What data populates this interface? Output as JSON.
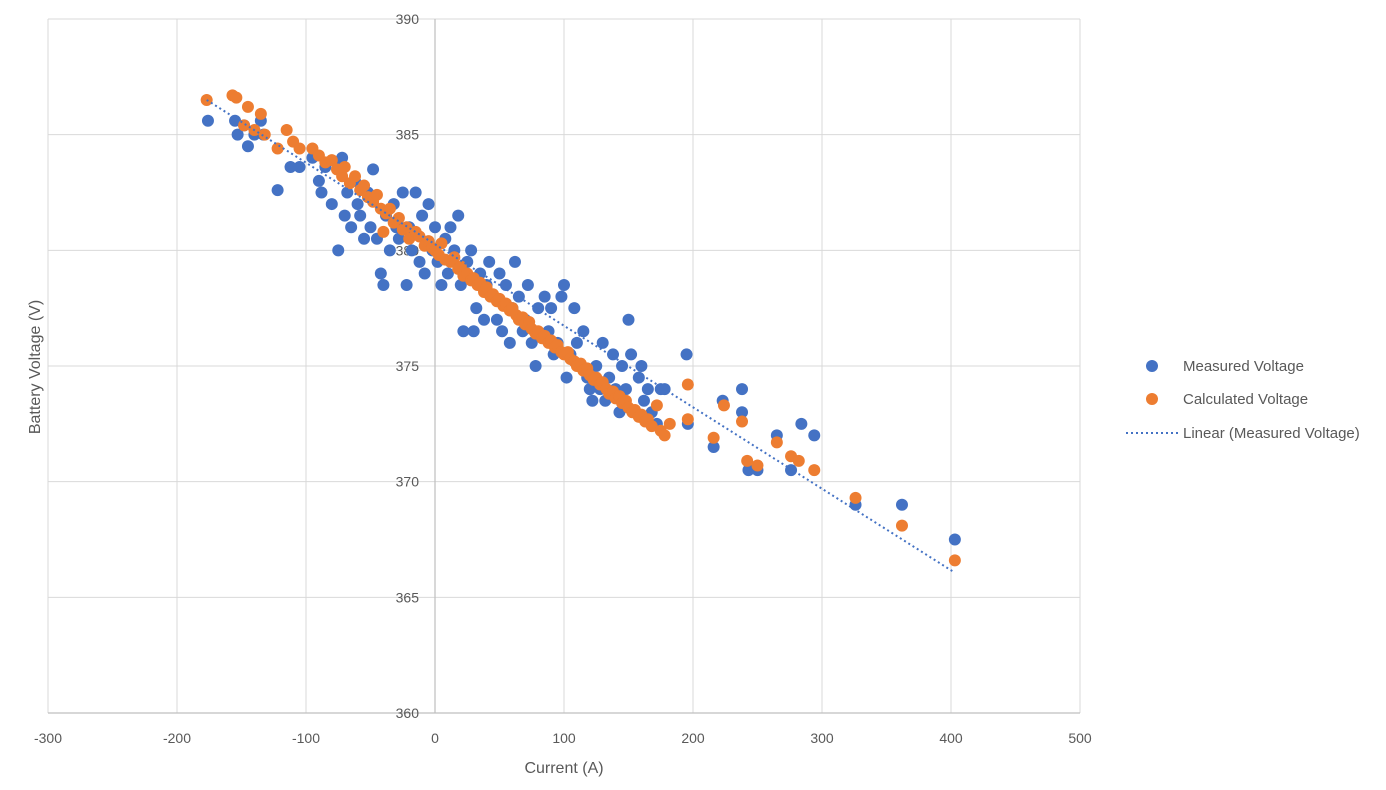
{
  "colors": {
    "measured": "#4472C4",
    "calculated": "#ED7D31",
    "trend": "#4472C4",
    "grid": "#D9D9D9",
    "text": "#595959"
  },
  "chart_data": {
    "type": "scatter",
    "title": "",
    "xlabel": "Current (A)",
    "ylabel": "Battery Voltage (V)",
    "xlim": [
      -300,
      500
    ],
    "ylim": [
      360,
      390
    ],
    "xticks": [
      -300,
      -200,
      -100,
      0,
      100,
      200,
      300,
      400,
      500
    ],
    "yticks": [
      360,
      365,
      370,
      375,
      380,
      385,
      390
    ],
    "xtick_labels": [
      "-300",
      "-200",
      "-100",
      "0",
      "100",
      "200",
      "300",
      "400",
      "500"
    ],
    "ytick_labels": [
      "360",
      "365",
      "370",
      "375",
      "380",
      "385",
      "390"
    ],
    "grid": true,
    "legend_position": "right",
    "legend": [
      "Measured Voltage",
      "Calculated Voltage",
      "Linear (Measured Voltage)"
    ],
    "trendline": {
      "name": "Linear (Measured Voltage)",
      "style": "dotted",
      "x": [
        -177,
        402
      ],
      "y": [
        386.5,
        366.1
      ]
    },
    "series": [
      {
        "name": "Measured Voltage",
        "color": "#4472C4",
        "points": [
          [
            -176,
            385.6
          ],
          [
            -155,
            385.6
          ],
          [
            -153,
            385.0
          ],
          [
            -148,
            385.4
          ],
          [
            -145,
            384.5
          ],
          [
            -140,
            385.0
          ],
          [
            -135,
            385.6
          ],
          [
            -133,
            385.0
          ],
          [
            -122,
            382.6
          ],
          [
            -112,
            383.6
          ],
          [
            -105,
            383.6
          ],
          [
            -95,
            384.0
          ],
          [
            -90,
            383.0
          ],
          [
            -88,
            382.5
          ],
          [
            -85,
            383.6
          ],
          [
            -80,
            382.0
          ],
          [
            -75,
            383.6
          ],
          [
            -72,
            384.0
          ],
          [
            -75,
            380.0
          ],
          [
            -70,
            381.5
          ],
          [
            -68,
            382.5
          ],
          [
            -65,
            381.0
          ],
          [
            -62,
            383.0
          ],
          [
            -60,
            382.0
          ],
          [
            -58,
            381.5
          ],
          [
            -55,
            380.5
          ],
          [
            -52,
            382.5
          ],
          [
            -50,
            381.0
          ],
          [
            -48,
            383.5
          ],
          [
            -45,
            380.5
          ],
          [
            -42,
            379.0
          ],
          [
            -40,
            378.5
          ],
          [
            -38,
            381.5
          ],
          [
            -35,
            380.0
          ],
          [
            -32,
            382.0
          ],
          [
            -30,
            381.0
          ],
          [
            -28,
            380.5
          ],
          [
            -25,
            382.5
          ],
          [
            -22,
            378.5
          ],
          [
            -20,
            381.0
          ],
          [
            -18,
            380.0
          ],
          [
            -15,
            382.5
          ],
          [
            -12,
            379.5
          ],
          [
            -10,
            381.5
          ],
          [
            -8,
            379.0
          ],
          [
            -5,
            382.0
          ],
          [
            -2,
            380.0
          ],
          [
            0,
            381.0
          ],
          [
            2,
            379.5
          ],
          [
            5,
            378.5
          ],
          [
            8,
            380.5
          ],
          [
            10,
            379.0
          ],
          [
            12,
            381.0
          ],
          [
            15,
            380.0
          ],
          [
            18,
            381.5
          ],
          [
            20,
            378.5
          ],
          [
            22,
            376.5
          ],
          [
            25,
            379.5
          ],
          [
            28,
            380.0
          ],
          [
            30,
            376.5
          ],
          [
            32,
            377.5
          ],
          [
            35,
            379.0
          ],
          [
            38,
            377.0
          ],
          [
            40,
            378.5
          ],
          [
            42,
            379.5
          ],
          [
            45,
            378.0
          ],
          [
            48,
            377.0
          ],
          [
            50,
            379.0
          ],
          [
            52,
            376.5
          ],
          [
            55,
            378.5
          ],
          [
            58,
            376.0
          ],
          [
            60,
            377.5
          ],
          [
            62,
            379.5
          ],
          [
            65,
            378.0
          ],
          [
            68,
            376.5
          ],
          [
            70,
            377.0
          ],
          [
            72,
            378.5
          ],
          [
            75,
            376.0
          ],
          [
            78,
            375.0
          ],
          [
            80,
            377.5
          ],
          [
            85,
            378.0
          ],
          [
            88,
            376.5
          ],
          [
            90,
            377.5
          ],
          [
            92,
            375.5
          ],
          [
            95,
            376.0
          ],
          [
            98,
            378.0
          ],
          [
            100,
            378.5
          ],
          [
            102,
            374.5
          ],
          [
            105,
            375.5
          ],
          [
            108,
            377.5
          ],
          [
            110,
            376.0
          ],
          [
            112,
            375.0
          ],
          [
            115,
            376.5
          ],
          [
            118,
            374.5
          ],
          [
            120,
            374.0
          ],
          [
            122,
            373.5
          ],
          [
            125,
            375.0
          ],
          [
            128,
            374.0
          ],
          [
            130,
            376.0
          ],
          [
            132,
            373.5
          ],
          [
            135,
            374.5
          ],
          [
            138,
            375.5
          ],
          [
            140,
            374.0
          ],
          [
            143,
            373.0
          ],
          [
            145,
            375.0
          ],
          [
            148,
            374.0
          ],
          [
            150,
            377.0
          ],
          [
            152,
            375.5
          ],
          [
            155,
            373.0
          ],
          [
            158,
            374.5
          ],
          [
            160,
            375.0
          ],
          [
            162,
            373.5
          ],
          [
            165,
            374.0
          ],
          [
            168,
            373.0
          ],
          [
            172,
            372.5
          ],
          [
            175,
            374.0
          ],
          [
            178,
            374.0
          ],
          [
            195,
            375.5
          ],
          [
            196,
            372.5
          ],
          [
            216,
            371.5
          ],
          [
            223,
            373.5
          ],
          [
            238,
            374.0
          ],
          [
            238,
            373.0
          ],
          [
            243,
            370.5
          ],
          [
            250,
            370.5
          ],
          [
            265,
            372.0
          ],
          [
            276,
            370.5
          ],
          [
            284,
            372.5
          ],
          [
            294,
            372.0
          ],
          [
            326,
            369.0
          ],
          [
            362,
            369.0
          ],
          [
            403,
            367.5
          ]
        ]
      },
      {
        "name": "Calculated Voltage",
        "color": "#ED7D31",
        "points": [
          [
            -177,
            386.5
          ],
          [
            -157,
            386.7
          ],
          [
            -154,
            386.6
          ],
          [
            -148,
            385.4
          ],
          [
            -145,
            386.2
          ],
          [
            -140,
            385.2
          ],
          [
            -135,
            385.9
          ],
          [
            -132,
            385.0
          ],
          [
            -122,
            384.4
          ],
          [
            -115,
            385.2
          ],
          [
            -110,
            384.7
          ],
          [
            -105,
            384.4
          ],
          [
            -95,
            384.4
          ],
          [
            -90,
            384.1
          ],
          [
            -85,
            383.8
          ],
          [
            -80,
            383.9
          ],
          [
            -76,
            383.5
          ],
          [
            -72,
            383.2
          ],
          [
            -70,
            383.6
          ],
          [
            -66,
            382.9
          ],
          [
            -62,
            383.2
          ],
          [
            -58,
            382.6
          ],
          [
            -55,
            382.8
          ],
          [
            -52,
            382.3
          ],
          [
            -48,
            382.1
          ],
          [
            -45,
            382.4
          ],
          [
            -42,
            381.8
          ],
          [
            -40,
            380.8
          ],
          [
            -38,
            381.6
          ],
          [
            -35,
            381.8
          ],
          [
            -32,
            381.2
          ],
          [
            -28,
            381.4
          ],
          [
            -25,
            380.9
          ],
          [
            -22,
            381.0
          ],
          [
            -20,
            380.5
          ],
          [
            -15,
            380.8
          ],
          [
            -12,
            380.6
          ],
          [
            -8,
            380.2
          ],
          [
            -5,
            380.4
          ],
          [
            -2,
            380.1
          ],
          [
            0,
            380.0
          ],
          [
            3,
            379.8
          ],
          [
            5,
            380.3
          ],
          [
            8,
            379.6
          ],
          [
            12,
            379.5
          ],
          [
            15,
            379.7
          ],
          [
            18,
            379.2
          ],
          [
            20,
            379.3
          ],
          [
            22,
            378.9
          ],
          [
            25,
            379.0
          ],
          [
            28,
            378.7
          ],
          [
            30,
            378.8
          ],
          [
            33,
            378.5
          ],
          [
            35,
            378.6
          ],
          [
            38,
            378.2
          ],
          [
            40,
            378.4
          ],
          [
            43,
            378.0
          ],
          [
            45,
            378.1
          ],
          [
            48,
            377.8
          ],
          [
            50,
            377.9
          ],
          [
            53,
            377.6
          ],
          [
            55,
            377.7
          ],
          [
            58,
            377.4
          ],
          [
            60,
            377.5
          ],
          [
            63,
            377.2
          ],
          [
            65,
            377.0
          ],
          [
            68,
            377.1
          ],
          [
            70,
            376.8
          ],
          [
            73,
            376.9
          ],
          [
            75,
            376.6
          ],
          [
            78,
            376.4
          ],
          [
            80,
            376.5
          ],
          [
            83,
            376.2
          ],
          [
            85,
            376.3
          ],
          [
            88,
            376.0
          ],
          [
            90,
            376.1
          ],
          [
            93,
            375.8
          ],
          [
            95,
            375.9
          ],
          [
            98,
            375.6
          ],
          [
            100,
            375.5
          ],
          [
            103,
            375.6
          ],
          [
            105,
            375.3
          ],
          [
            108,
            375.2
          ],
          [
            110,
            375.0
          ],
          [
            113,
            375.1
          ],
          [
            115,
            374.8
          ],
          [
            118,
            374.9
          ],
          [
            120,
            374.6
          ],
          [
            123,
            374.4
          ],
          [
            125,
            374.5
          ],
          [
            128,
            374.2
          ],
          [
            130,
            374.3
          ],
          [
            133,
            374.0
          ],
          [
            135,
            373.8
          ],
          [
            138,
            373.9
          ],
          [
            140,
            373.6
          ],
          [
            143,
            373.7
          ],
          [
            145,
            373.4
          ],
          [
            148,
            373.5
          ],
          [
            150,
            373.2
          ],
          [
            153,
            373.0
          ],
          [
            155,
            373.1
          ],
          [
            158,
            372.8
          ],
          [
            160,
            372.9
          ],
          [
            163,
            372.6
          ],
          [
            165,
            372.7
          ],
          [
            168,
            372.4
          ],
          [
            172,
            373.3
          ],
          [
            175,
            372.2
          ],
          [
            178,
            372.0
          ],
          [
            182,
            372.5
          ],
          [
            196,
            374.2
          ],
          [
            196,
            372.7
          ],
          [
            216,
            371.9
          ],
          [
            224,
            373.3
          ],
          [
            238,
            372.6
          ],
          [
            242,
            370.9
          ],
          [
            250,
            370.7
          ],
          [
            265,
            371.7
          ],
          [
            276,
            371.1
          ],
          [
            282,
            370.9
          ],
          [
            294,
            370.5
          ],
          [
            326,
            369.3
          ],
          [
            362,
            368.1
          ],
          [
            403,
            366.6
          ]
        ]
      }
    ]
  }
}
